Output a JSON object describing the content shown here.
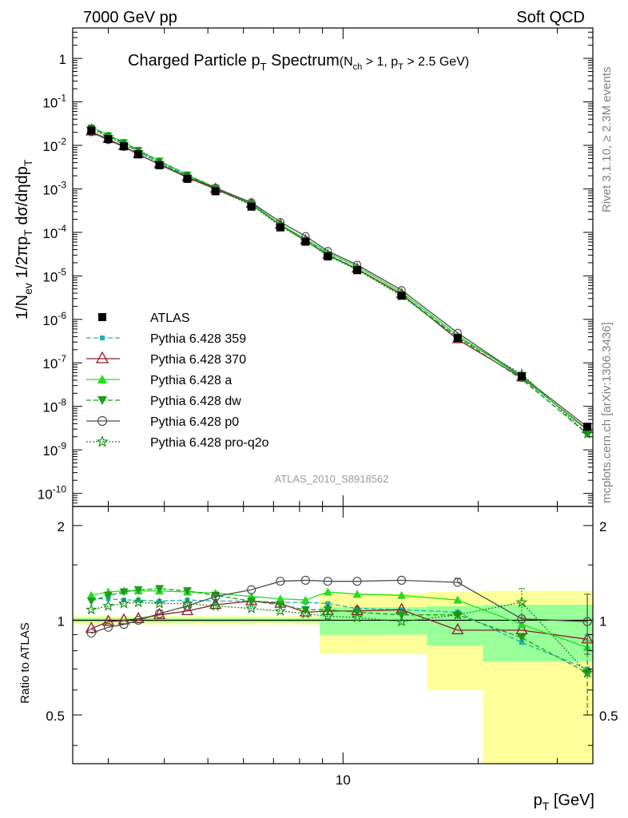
{
  "header": {
    "left": "7000 GeV pp",
    "right": "Soft QCD"
  },
  "side": {
    "rivet": "Rivet 3.1.10, ≥ 2.3M events",
    "mcplots": "mcplots.cern.ch [arXiv:1306.3436]"
  },
  "watermark": "ATLAS_2010_S8918562",
  "chart_data": [
    {
      "type": "line",
      "title": "Charged Particle pT Spectrum",
      "subtitle": "(Nch > 1, pT > 2.5 GeV)",
      "xlabel": "pT [GeV]",
      "ylabel": "1/Nev 1/2πpT dσ/dηdpT",
      "xscale": "log",
      "yscale": "log",
      "xlim": [
        2.5,
        36
      ],
      "ylim": [
        5e-11,
        5
      ],
      "y_ticks": [
        "1",
        "10⁻¹",
        "10⁻²",
        "10⁻³",
        "10⁻⁴",
        "10⁻⁵",
        "10⁻⁶",
        "10⁻⁷",
        "10⁻⁸",
        "10⁻⁹",
        "10⁻¹⁰"
      ],
      "x_ticks": [
        "10"
      ],
      "x": [
        2.75,
        3.0,
        3.25,
        3.5,
        3.9,
        4.5,
        5.2,
        6.25,
        7.25,
        8.25,
        9.25,
        10.75,
        13.5,
        18.0,
        25.0,
        35.0
      ],
      "reference": {
        "name": "ATLAS",
        "values": [
          0.022,
          0.014,
          0.0095,
          0.0062,
          0.0035,
          0.0017,
          0.00088,
          0.00039,
          0.00013,
          6.1e-05,
          2.8e-05,
          1.35e-05,
          3.5e-06,
          3.7e-07,
          4.9e-08,
          3.4e-09
        ]
      },
      "series": [
        {
          "name": "Pythia 6.428 359",
          "color": "#20b2aa",
          "dash": "6,3",
          "marker": "square-small"
        },
        {
          "name": "Pythia 6.428 370",
          "color": "#8b1a2a",
          "dash": "",
          "marker": "triangle-open"
        },
        {
          "name": "Pythia 6.428 a",
          "color": "#22dd22",
          "dash": "",
          "marker": "triangle-filled"
        },
        {
          "name": "Pythia 6.428 dw",
          "color": "#1aa01a",
          "dash": "6,3",
          "marker": "triangle-down"
        },
        {
          "name": "Pythia 6.428 p0",
          "color": "#4d4d4d",
          "dash": "",
          "marker": "circle-open"
        },
        {
          "name": "Pythia 6.428 pro-q2o",
          "color": "#138a13",
          "dash": "2,2",
          "marker": "star-open"
        }
      ],
      "legend_position": "middle-left"
    },
    {
      "type": "line",
      "ylabel": "Ratio to ATLAS",
      "xscale": "log",
      "xlim": [
        2.5,
        36
      ],
      "ylim": [
        0.35,
        2.3
      ],
      "y_ticks": [
        "0.5",
        "1",
        "2"
      ],
      "x": [
        2.75,
        3.0,
        3.25,
        3.5,
        3.9,
        4.5,
        5.2,
        6.25,
        7.25,
        8.25,
        9.25,
        10.75,
        13.5,
        18.0,
        25.0,
        35.0
      ],
      "bin_edges": [
        2.5,
        2.875,
        3.125,
        3.375,
        3.625,
        4.25,
        4.75,
        5.625,
        6.875,
        7.625,
        8.875,
        9.875,
        11.625,
        15.375,
        20.5,
        29.5,
        36
      ],
      "band_inner": [
        [
          0.985,
          1.015
        ],
        [
          0.985,
          1.015
        ],
        [
          0.985,
          1.015
        ],
        [
          0.985,
          1.015
        ],
        [
          0.985,
          1.015
        ],
        [
          0.985,
          1.015
        ],
        [
          0.985,
          1.015
        ],
        [
          0.985,
          1.015
        ],
        [
          0.985,
          1.015
        ],
        [
          0.985,
          1.015
        ],
        [
          0.9,
          1.1
        ],
        [
          0.9,
          1.1
        ],
        [
          0.9,
          1.1
        ],
        [
          0.83,
          1.11
        ],
        [
          0.74,
          1.12
        ],
        [
          0.74,
          1.12
        ]
      ],
      "band_outer": [
        [
          0.97,
          1.03
        ],
        [
          0.97,
          1.03
        ],
        [
          0.97,
          1.03
        ],
        [
          0.97,
          1.03
        ],
        [
          0.97,
          1.03
        ],
        [
          0.97,
          1.03
        ],
        [
          0.97,
          1.03
        ],
        [
          0.97,
          1.03
        ],
        [
          0.97,
          1.03
        ],
        [
          0.97,
          1.03
        ],
        [
          0.78,
          1.22
        ],
        [
          0.78,
          1.22
        ],
        [
          0.78,
          1.22
        ],
        [
          0.6,
          1.23
        ],
        [
          0.35,
          1.24
        ],
        [
          0.35,
          1.24
        ]
      ],
      "series_values": {
        "Pythia 6.428 359": [
          1.17,
          1.17,
          1.16,
          1.16,
          1.15,
          1.16,
          1.15,
          1.15,
          1.14,
          1.14,
          1.13,
          1.09,
          1.08,
          1.06,
          0.85,
          0.7
        ],
        "Pythia 6.428 370": [
          0.94,
          0.99,
          1.0,
          1.01,
          1.04,
          1.07,
          1.12,
          1.15,
          1.13,
          1.06,
          1.07,
          1.07,
          1.08,
          0.93,
          0.93,
          0.87
        ],
        "Pythia 6.428 a": [
          1.2,
          1.23,
          1.24,
          1.24,
          1.24,
          1.23,
          1.22,
          1.19,
          1.17,
          1.16,
          1.23,
          1.21,
          1.2,
          1.16,
          0.97,
          0.82
        ],
        "Pythia 6.428 dw": [
          1.15,
          1.2,
          1.23,
          1.25,
          1.26,
          1.24,
          1.2,
          1.15,
          1.12,
          1.08,
          1.08,
          1.06,
          1.04,
          1.04,
          0.88,
          0.68
        ],
        "Pythia 6.428 p0": [
          0.91,
          0.95,
          0.97,
          1.0,
          1.05,
          1.11,
          1.19,
          1.25,
          1.33,
          1.34,
          1.33,
          1.33,
          1.34,
          1.32,
          1.01,
          0.99
        ],
        "Pythia 6.428 pro-q2o": [
          1.08,
          1.11,
          1.13,
          1.14,
          1.13,
          1.13,
          1.11,
          1.09,
          1.07,
          1.05,
          1.03,
          1.02,
          0.99,
          1.04,
          1.14,
          0.68
        ]
      },
      "error_bars": {
        "Pythia 6.428 p0": [
          [
            1.32,
            1.36
          ],
          [
            0.78,
            1.21
          ]
        ],
        "Pythia 6.428 pro-q2o": [
          [
            1.02,
            1.26
          ]
        ],
        "Pythia 6.428 359": [
          [
            0.5,
            0.9
          ]
        ],
        "Pythia 6.428 dw": [
          [
            0.5,
            0.86
          ]
        ]
      }
    }
  ]
}
